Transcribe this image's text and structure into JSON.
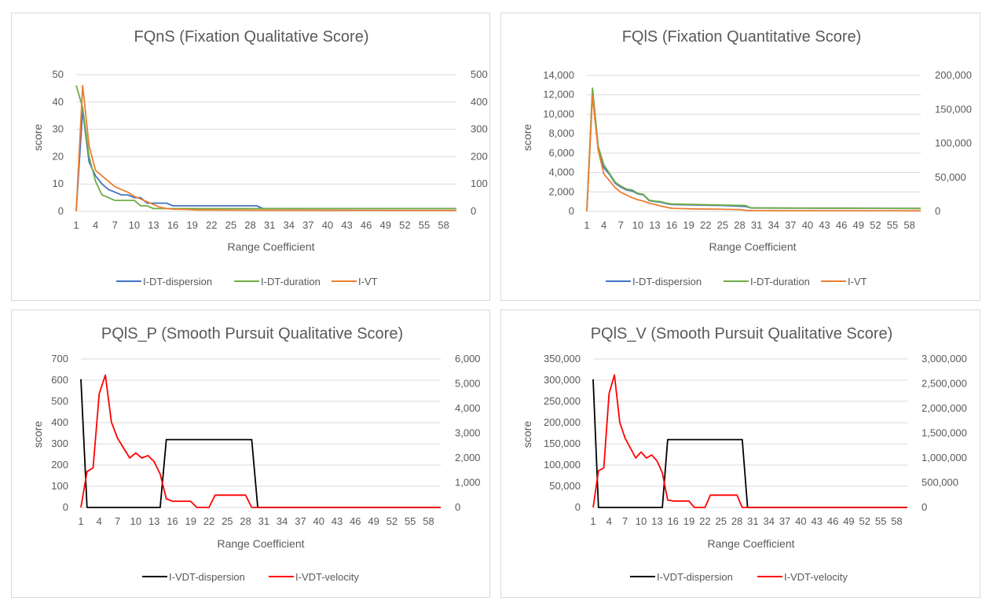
{
  "chart_data": [
    {
      "type": "line",
      "title": "FQnS (Fixation Qualitative Score)",
      "xlabel": "Range Coefficient",
      "ylabel": "score",
      "x_ticks": [
        "1",
        "4",
        "7",
        "10",
        "13",
        "16",
        "19",
        "22",
        "25",
        "28",
        "31",
        "34",
        "37",
        "40",
        "43",
        "46",
        "49",
        "52",
        "55",
        "58"
      ],
      "xlim": [
        1,
        60
      ],
      "ylim": [
        0,
        50
      ],
      "y_ticks": [
        "0",
        "10",
        "20",
        "30",
        "40",
        "50"
      ],
      "y2lim": [
        0,
        500
      ],
      "y2_ticks": [
        "0",
        "100",
        "200",
        "300",
        "400",
        "500"
      ],
      "legend_position": "bottom",
      "series": [
        {
          "name": "I-DT-dispersion",
          "color": "#4472c4",
          "axis": "left",
          "points": [
            [
              1,
              0
            ],
            [
              2,
              37
            ],
            [
              3,
              18
            ],
            [
              4,
              13
            ],
            [
              5,
              10
            ],
            [
              6,
              8
            ],
            [
              7,
              7
            ],
            [
              8,
              6
            ],
            [
              9,
              6
            ],
            [
              10,
              5
            ],
            [
              11,
              5
            ],
            [
              12,
              3
            ],
            [
              13,
              3
            ],
            [
              14,
              3
            ],
            [
              15,
              3
            ],
            [
              16,
              2
            ],
            [
              29,
              2
            ],
            [
              30,
              1
            ],
            [
              60,
              1
            ]
          ]
        },
        {
          "name": "I-DT-duration",
          "color": "#70ad47",
          "axis": "left",
          "points": [
            [
              1,
              46
            ],
            [
              2,
              38
            ],
            [
              3,
              20
            ],
            [
              4,
              11
            ],
            [
              5,
              6
            ],
            [
              6,
              5
            ],
            [
              7,
              4
            ],
            [
              10,
              4
            ],
            [
              11,
              2
            ],
            [
              12,
              2
            ],
            [
              13,
              1
            ],
            [
              60,
              1
            ]
          ]
        },
        {
          "name": "I-VT",
          "color": "#ed7d31",
          "axis": "right",
          "points": [
            [
              1,
              0
            ],
            [
              2,
              460
            ],
            [
              3,
              240
            ],
            [
              4,
              150
            ],
            [
              5,
              130
            ],
            [
              6,
              110
            ],
            [
              7,
              90
            ],
            [
              8,
              80
            ],
            [
              9,
              70
            ],
            [
              10,
              55
            ],
            [
              11,
              45
            ],
            [
              12,
              35
            ],
            [
              13,
              25
            ],
            [
              14,
              15
            ],
            [
              15,
              10
            ],
            [
              16,
              8
            ],
            [
              18,
              7
            ],
            [
              20,
              5
            ],
            [
              30,
              4
            ],
            [
              60,
              3
            ]
          ]
        }
      ]
    },
    {
      "type": "line",
      "title": "FQlS (Fixation Quantitative Score)",
      "xlabel": "Range Coefficient",
      "ylabel": "score",
      "x_ticks": [
        "1",
        "4",
        "7",
        "10",
        "13",
        "16",
        "19",
        "22",
        "25",
        "28",
        "31",
        "34",
        "37",
        "40",
        "43",
        "46",
        "49",
        "52",
        "55",
        "58"
      ],
      "xlim": [
        1,
        60
      ],
      "ylim": [
        0,
        14000
      ],
      "y_ticks": [
        "0",
        "2,000",
        "4,000",
        "6,000",
        "8,000",
        "10,000",
        "12,000",
        "14,000"
      ],
      "y2lim": [
        0,
        200000
      ],
      "y2_ticks": [
        "0",
        "50,000",
        "100,000",
        "150,000",
        "200,000"
      ],
      "legend_position": "bottom",
      "series": [
        {
          "name": "I-DT-dispersion",
          "color": "#4472c4",
          "axis": "left",
          "points": [
            [
              1,
              0
            ],
            [
              2,
              12500
            ],
            [
              3,
              6600
            ],
            [
              4,
              4500
            ],
            [
              5,
              3800
            ],
            [
              6,
              2900
            ],
            [
              7,
              2500
            ],
            [
              8,
              2200
            ],
            [
              9,
              2100
            ],
            [
              10,
              1800
            ],
            [
              11,
              1700
            ],
            [
              12,
              1100
            ],
            [
              13,
              1000
            ],
            [
              14,
              950
            ],
            [
              15,
              800
            ],
            [
              16,
              700
            ],
            [
              20,
              650
            ],
            [
              25,
              600
            ],
            [
              29,
              500
            ],
            [
              30,
              350
            ],
            [
              60,
              300
            ]
          ]
        },
        {
          "name": "I-DT-duration",
          "color": "#70ad47",
          "axis": "left",
          "points": [
            [
              1,
              0
            ],
            [
              2,
              12700
            ],
            [
              3,
              6700
            ],
            [
              4,
              4800
            ],
            [
              5,
              3900
            ],
            [
              6,
              3000
            ],
            [
              7,
              2600
            ],
            [
              8,
              2300
            ],
            [
              9,
              2200
            ],
            [
              10,
              1850
            ],
            [
              11,
              1750
            ],
            [
              12,
              1150
            ],
            [
              13,
              1050
            ],
            [
              14,
              1000
            ],
            [
              15,
              850
            ],
            [
              16,
              750
            ],
            [
              20,
              700
            ],
            [
              25,
              650
            ],
            [
              29,
              600
            ],
            [
              30,
              350
            ],
            [
              60,
              300
            ]
          ]
        },
        {
          "name": "I-VT",
          "color": "#ed7d31",
          "axis": "right",
          "points": [
            [
              1,
              0
            ],
            [
              2,
              170000
            ],
            [
              3,
              90000
            ],
            [
              4,
              55000
            ],
            [
              5,
              45000
            ],
            [
              6,
              35000
            ],
            [
              7,
              28000
            ],
            [
              8,
              24000
            ],
            [
              9,
              20000
            ],
            [
              10,
              17000
            ],
            [
              11,
              15000
            ],
            [
              12,
              12000
            ],
            [
              13,
              10000
            ],
            [
              14,
              8000
            ],
            [
              15,
              6000
            ],
            [
              16,
              4500
            ],
            [
              20,
              3500
            ],
            [
              25,
              3000
            ],
            [
              28,
              2500
            ],
            [
              29,
              1500
            ],
            [
              30,
              1000
            ],
            [
              60,
              800
            ]
          ]
        }
      ]
    },
    {
      "type": "line",
      "title": "PQlS_P (Smooth Pursuit Qualitative Score)",
      "xlabel": "Range Coefficient",
      "ylabel": "score",
      "x_ticks": [
        "1",
        "4",
        "7",
        "10",
        "13",
        "16",
        "19",
        "22",
        "25",
        "28",
        "31",
        "34",
        "37",
        "40",
        "43",
        "46",
        "49",
        "52",
        "55",
        "58"
      ],
      "xlim": [
        1,
        60
      ],
      "ylim": [
        0,
        700
      ],
      "y_ticks": [
        "0",
        "100",
        "200",
        "300",
        "400",
        "500",
        "600",
        "700"
      ],
      "y2lim": [
        0,
        6000
      ],
      "y2_ticks": [
        "0",
        "1,000",
        "2,000",
        "3,000",
        "4,000",
        "5,000",
        "6,000"
      ],
      "legend_position": "bottom",
      "series": [
        {
          "name": "I-VDT-dispersion",
          "color": "#000000",
          "axis": "left",
          "points": [
            [
              1,
              605
            ],
            [
              2,
              0
            ],
            [
              14,
              0
            ],
            [
              15,
              320
            ],
            [
              29,
              320
            ],
            [
              30,
              0
            ],
            [
              60,
              0
            ]
          ]
        },
        {
          "name": "I-VDT-velocity",
          "color": "#ff0000",
          "axis": "right",
          "points": [
            [
              1,
              0
            ],
            [
              2,
              1450
            ],
            [
              3,
              1600
            ],
            [
              4,
              4600
            ],
            [
              5,
              5350
            ],
            [
              6,
              3450
            ],
            [
              7,
              2800
            ],
            [
              8,
              2400
            ],
            [
              9,
              2000
            ],
            [
              10,
              2200
            ],
            [
              11,
              2000
            ],
            [
              12,
              2100
            ],
            [
              13,
              1850
            ],
            [
              14,
              1350
            ],
            [
              15,
              350
            ],
            [
              16,
              250
            ],
            [
              18,
              250
            ],
            [
              19,
              250
            ],
            [
              20,
              0
            ],
            [
              21,
              0
            ],
            [
              22,
              0
            ],
            [
              23,
              500
            ],
            [
              24,
              500
            ],
            [
              28,
              500
            ],
            [
              29,
              0
            ],
            [
              60,
              0
            ]
          ]
        }
      ]
    },
    {
      "type": "line",
      "title": "PQlS_V (Smooth Pursuit Qualitative Score)",
      "xlabel": "Range Coefficient",
      "ylabel": "score",
      "x_ticks": [
        "1",
        "4",
        "7",
        "10",
        "13",
        "16",
        "19",
        "22",
        "25",
        "28",
        "31",
        "34",
        "37",
        "40",
        "43",
        "46",
        "49",
        "52",
        "55",
        "58"
      ],
      "xlim": [
        1,
        60
      ],
      "ylim": [
        0,
        350000
      ],
      "y_ticks": [
        "0",
        "50,000",
        "100,000",
        "150,000",
        "200,000",
        "250,000",
        "300,000",
        "350,000"
      ],
      "y2lim": [
        0,
        3000000
      ],
      "y2_ticks": [
        "0",
        "500,000",
        "1,000,000",
        "1,500,000",
        "2,000,000",
        "2,500,000",
        "3,000,000"
      ],
      "legend_position": "bottom",
      "series": [
        {
          "name": "I-VDT-dispersion",
          "color": "#000000",
          "axis": "left",
          "points": [
            [
              1,
              302000
            ],
            [
              2,
              0
            ],
            [
              14,
              0
            ],
            [
              15,
              160000
            ],
            [
              29,
              160000
            ],
            [
              30,
              0
            ],
            [
              60,
              0
            ]
          ]
        },
        {
          "name": "I-VDT-velocity",
          "color": "#ff0000",
          "axis": "right",
          "points": [
            [
              1,
              0
            ],
            [
              2,
              740000
            ],
            [
              3,
              800000
            ],
            [
              4,
              2300000
            ],
            [
              5,
              2680000
            ],
            [
              6,
              1720000
            ],
            [
              7,
              1400000
            ],
            [
              8,
              1200000
            ],
            [
              9,
              1000000
            ],
            [
              10,
              1120000
            ],
            [
              11,
              1000000
            ],
            [
              12,
              1060000
            ],
            [
              13,
              940000
            ],
            [
              14,
              700000
            ],
            [
              15,
              150000
            ],
            [
              16,
              130000
            ],
            [
              18,
              130000
            ],
            [
              19,
              130000
            ],
            [
              20,
              0
            ],
            [
              21,
              0
            ],
            [
              22,
              0
            ],
            [
              23,
              250000
            ],
            [
              24,
              250000
            ],
            [
              28,
              250000
            ],
            [
              29,
              0
            ],
            [
              60,
              0
            ]
          ]
        }
      ]
    }
  ]
}
